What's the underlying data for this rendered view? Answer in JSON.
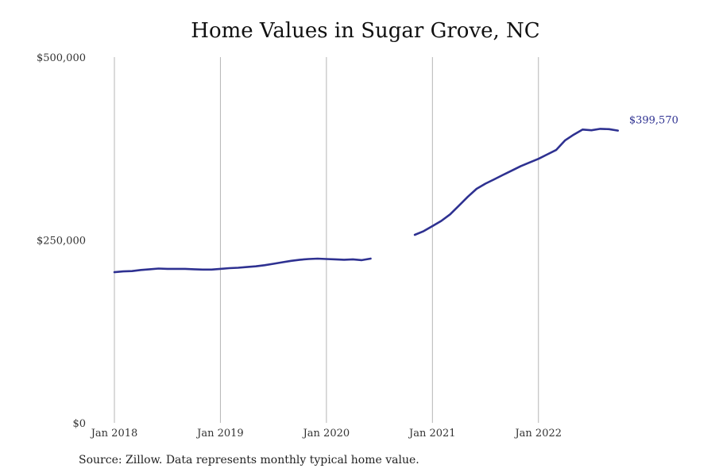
{
  "title": "Home Values in Sugar Grove, NC",
  "source": "Source: Zillow. Data represents monthly typical home value.",
  "chart_data": {
    "type": "line",
    "title": "Home Values in Sugar Grove, NC",
    "xlabel": "",
    "ylabel": "",
    "x_ticks": [
      "Jan 2018",
      "Jan 2019",
      "Jan 2020",
      "Jan 2021",
      "Jan 2022"
    ],
    "y_ticks": [
      "$0",
      "$250,000",
      "$500,000"
    ],
    "y_tick_values": [
      0,
      250000,
      500000
    ],
    "ylim": [
      0,
      500000
    ],
    "xlim": [
      "2018-01",
      "2022-12"
    ],
    "grid": "vertical",
    "line_color": "#2e3191",
    "end_label": "$399,570",
    "series": [
      {
        "points": [
          [
            "2018-01",
            206000
          ],
          [
            "2018-02",
            207000
          ],
          [
            "2018-03",
            207500
          ],
          [
            "2018-04",
            209000
          ],
          [
            "2018-05",
            210000
          ],
          [
            "2018-06",
            211000
          ],
          [
            "2018-07",
            210500
          ],
          [
            "2018-08",
            210500
          ],
          [
            "2018-09",
            210500
          ],
          [
            "2018-10",
            210000
          ],
          [
            "2018-11",
            209500
          ],
          [
            "2018-12",
            209500
          ],
          [
            "2019-01",
            210500
          ],
          [
            "2019-02",
            211500
          ],
          [
            "2019-03",
            212000
          ],
          [
            "2019-04",
            213000
          ],
          [
            "2019-05",
            214000
          ],
          [
            "2019-06",
            215500
          ],
          [
            "2019-07",
            217500
          ],
          [
            "2019-08",
            219500
          ],
          [
            "2019-09",
            221500
          ],
          [
            "2019-10",
            223000
          ],
          [
            "2019-11",
            224000
          ],
          [
            "2019-12",
            224500
          ],
          [
            "2020-01",
            224000
          ],
          [
            "2020-02",
            223500
          ],
          [
            "2020-03",
            223000
          ],
          [
            "2020-04",
            223500
          ],
          [
            "2020-05",
            222500
          ],
          [
            "2020-06",
            224500
          ],
          null,
          [
            "2020-11",
            257000
          ],
          [
            "2020-12",
            262000
          ],
          [
            "2021-01",
            269000
          ],
          [
            "2021-02",
            276000
          ],
          [
            "2021-03",
            285000
          ],
          [
            "2021-04",
            297000
          ],
          [
            "2021-05",
            309000
          ],
          [
            "2021-06",
            320000
          ],
          [
            "2021-07",
            327000
          ],
          [
            "2021-08",
            333000
          ],
          [
            "2021-09",
            339000
          ],
          [
            "2021-10",
            345000
          ],
          [
            "2021-11",
            351000
          ],
          [
            "2021-12",
            356000
          ],
          [
            "2022-01",
            361000
          ],
          [
            "2022-02",
            367000
          ],
          [
            "2022-03",
            373000
          ],
          [
            "2022-04",
            386000
          ],
          [
            "2022-05",
            394000
          ],
          [
            "2022-06",
            401000
          ],
          [
            "2022-07",
            400000
          ],
          [
            "2022-08",
            402000
          ],
          [
            "2022-09",
            401500
          ],
          [
            "2022-10",
            399570
          ]
        ]
      }
    ]
  }
}
